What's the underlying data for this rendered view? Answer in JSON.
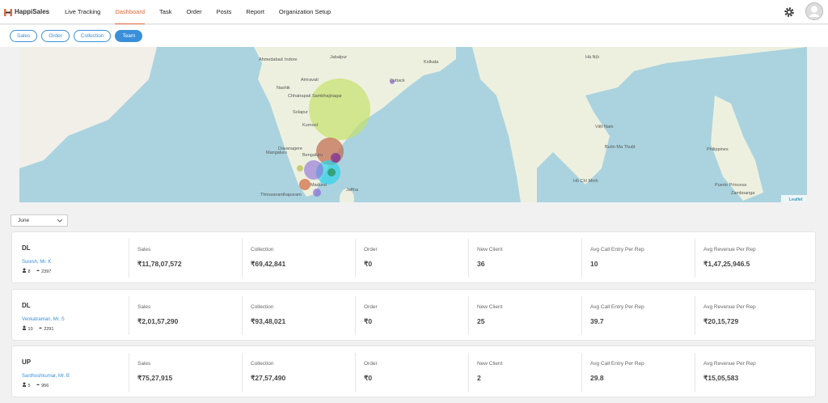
{
  "nav": {
    "brand": "HappiSales",
    "items": [
      "Live Tracking",
      "Dashboard",
      "Task",
      "Order",
      "Posts",
      "Report",
      "Organization Setup"
    ],
    "active": 1
  },
  "tabs": {
    "items": [
      "Sales",
      "Order",
      "Collection",
      "Team"
    ],
    "active": 3
  },
  "map": {
    "labels": [
      "Ahmedabad",
      "Indore",
      "Jabalpur",
      "Nashik",
      "Amravati",
      "Chhatrapati Sambhajinagar",
      "Solapur",
      "Kurnool",
      "Davanagere",
      "Mangaluru",
      "Bengaluru",
      "Madurai",
      "Jaffna",
      "Thiruvananthapuram",
      "Cuttack",
      "Kolkata",
      "Hà Nội",
      "Việt Nam",
      "Buôn Ma Thuột",
      "Hồ Chí Minh",
      "Philippines",
      "Puerto Princesa",
      "Zamboanga"
    ],
    "attribution": "Leaflet"
  },
  "filter": {
    "month": "June"
  },
  "teams": [
    {
      "region": "DL",
      "manager": "Suresh, Mr. K",
      "members": "8",
      "visits": "2397",
      "metrics": [
        {
          "label": "Sales",
          "value": "₹11,78,07,572"
        },
        {
          "label": "Collection",
          "value": "₹69,42,841"
        },
        {
          "label": "Order",
          "value": "₹0"
        },
        {
          "label": "New Client",
          "value": "36"
        },
        {
          "label": "Avg Call Entry Per Rep",
          "value": "10"
        },
        {
          "label": "Avg Revenue Per Rep",
          "value": "₹1,47,25,946.5"
        }
      ]
    },
    {
      "region": "DL",
      "manager": "Venkatraman, Mr. S",
      "members": "10",
      "visits": "2291",
      "metrics": [
        {
          "label": "Sales",
          "value": "₹2,01,57,290"
        },
        {
          "label": "Collection",
          "value": "₹93,48,021"
        },
        {
          "label": "Order",
          "value": "₹0"
        },
        {
          "label": "New Client",
          "value": "25"
        },
        {
          "label": "Avg Call Entry Per Rep",
          "value": "39.7"
        },
        {
          "label": "Avg Revenue Per Rep",
          "value": "₹20,15,729"
        }
      ]
    },
    {
      "region": "UP",
      "manager": "Santhoshkumar, Mr. B",
      "members": "5",
      "visits": "956",
      "metrics": [
        {
          "label": "Sales",
          "value": "₹75,27,915"
        },
        {
          "label": "Collection",
          "value": "₹27,57,490"
        },
        {
          "label": "Order",
          "value": "₹0"
        },
        {
          "label": "New Client",
          "value": "2"
        },
        {
          "label": "Avg Call Entry Per Rep",
          "value": "29.8"
        },
        {
          "label": "Avg Revenue Per Rep",
          "value": "₹15,05,583"
        }
      ]
    }
  ]
}
